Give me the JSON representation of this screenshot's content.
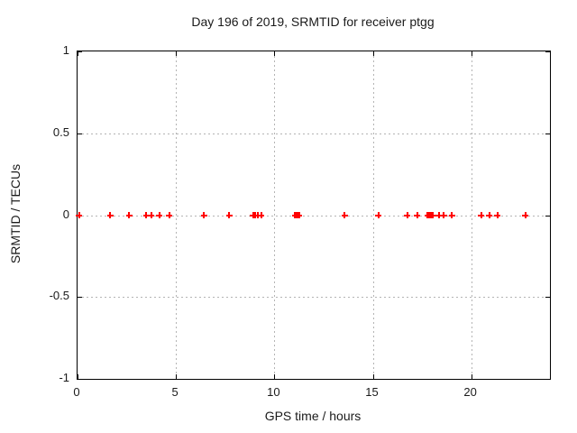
{
  "colors": {
    "background": "#ffffff",
    "axis": "#000000",
    "grid": "#b4b4b4",
    "text": "#1a1a1a",
    "marker": "#ff0000"
  },
  "chart_data": {
    "type": "scatter",
    "title": "Day 196 of 2019, SRMTID for receiver ptgg",
    "xlabel": "GPS time / hours",
    "ylabel": "SRMTID / TECUs",
    "xlim": [
      0,
      24
    ],
    "ylim": [
      -1,
      1
    ],
    "grid": true,
    "legend": "none",
    "xticks": [
      {
        "value": 0,
        "label": "0"
      },
      {
        "value": 5,
        "label": "5"
      },
      {
        "value": 10,
        "label": "10"
      },
      {
        "value": 15,
        "label": "15"
      },
      {
        "value": 20,
        "label": "20"
      }
    ],
    "yticks": [
      {
        "value": 1,
        "label": "1"
      },
      {
        "value": 0.5,
        "label": "0.5"
      },
      {
        "value": 0,
        "label": "0"
      },
      {
        "value": -0.5,
        "label": "-0.5"
      },
      {
        "value": -1,
        "label": "-1"
      }
    ],
    "grid_x": [
      5,
      10,
      15,
      20
    ],
    "grid_y": [
      0.5,
      0,
      -0.5
    ],
    "series": [
      {
        "name": "SRMTID",
        "marker": "plus",
        "color": "#ff0000",
        "x": [
          0.08,
          1.67,
          2.63,
          3.5,
          3.74,
          4.16,
          4.65,
          6.43,
          7.71,
          8.92,
          8.97,
          9.02,
          9.16,
          9.33,
          11.05,
          11.09,
          11.13,
          11.17,
          11.21,
          11.25,
          13.57,
          15.28,
          16.75,
          17.25,
          17.78,
          17.84,
          17.9,
          17.96,
          18.05,
          18.36,
          18.6,
          19.03,
          20.51,
          20.92,
          21.34,
          22.76
        ],
        "y": [
          0,
          0,
          0,
          0,
          0,
          0,
          0,
          0,
          0,
          0,
          0,
          0,
          0,
          0,
          0,
          0,
          0,
          0,
          0,
          0,
          0,
          0,
          0,
          0,
          0,
          0,
          0,
          0,
          0,
          0,
          0,
          0,
          0,
          0,
          0,
          0
        ]
      }
    ]
  }
}
